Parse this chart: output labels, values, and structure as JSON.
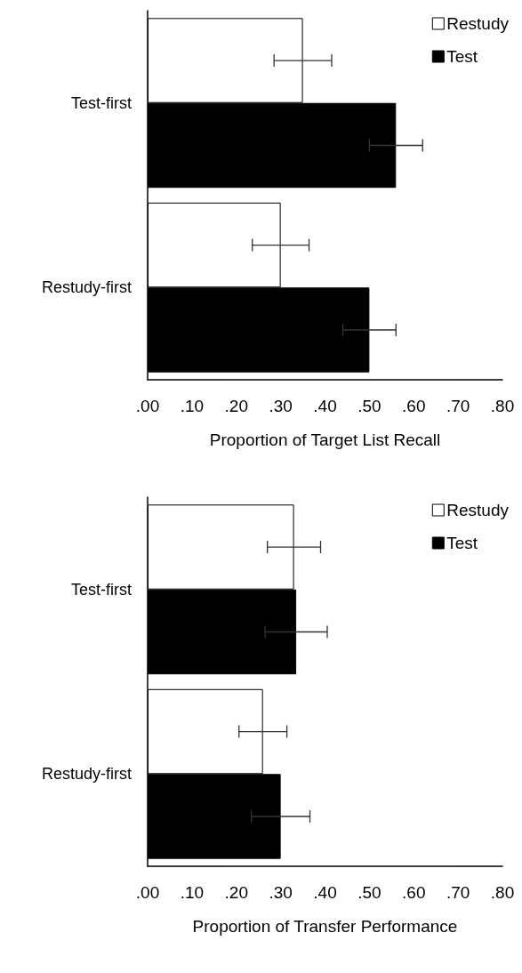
{
  "chart_data": [
    {
      "type": "bar",
      "orientation": "horizontal",
      "categories": [
        "Test-first",
        "Restudy-first"
      ],
      "xlabel": "Proportion of Target List Recall",
      "xlim": [
        0,
        0.8
      ],
      "xticks": [
        {
          "value": 0,
          "label": ".00"
        },
        {
          "value": 0.1,
          "label": ".10"
        },
        {
          "value": 0.2,
          "label": ".20"
        },
        {
          "value": 0.3,
          "label": ".30"
        },
        {
          "value": 0.4,
          "label": ".40"
        },
        {
          "value": 0.5,
          "label": ".50"
        },
        {
          "value": 0.6,
          "label": ".60"
        },
        {
          "value": 0.7,
          "label": ".70"
        },
        {
          "value": 0.8,
          "label": ".80"
        }
      ],
      "grid": false,
      "legend": "top right",
      "series": [
        {
          "name": "Restudy",
          "color": "#ffffff",
          "values": [
            0.35,
            0.3
          ],
          "errors": [
            0.065,
            0.064
          ]
        },
        {
          "name": "Test",
          "color": "#000000",
          "values": [
            0.56,
            0.5
          ],
          "errors": [
            0.06,
            0.06
          ]
        }
      ]
    },
    {
      "type": "bar",
      "orientation": "horizontal",
      "categories": [
        "Test-first",
        "Restudy-first"
      ],
      "xlabel": "Proportion of Transfer Performance",
      "xlim": [
        0,
        0.8
      ],
      "xticks": [
        {
          "value": 0,
          "label": ".00"
        },
        {
          "value": 0.1,
          "label": ".10"
        },
        {
          "value": 0.2,
          "label": ".20"
        },
        {
          "value": 0.3,
          "label": ".30"
        },
        {
          "value": 0.4,
          "label": ".40"
        },
        {
          "value": 0.5,
          "label": ".50"
        },
        {
          "value": 0.6,
          "label": ".60"
        },
        {
          "value": 0.7,
          "label": ".70"
        },
        {
          "value": 0.8,
          "label": ".80"
        }
      ],
      "grid": false,
      "legend": "top right",
      "series": [
        {
          "name": "Restudy",
          "color": "#ffffff",
          "values": [
            0.33,
            0.26
          ],
          "errors": [
            0.06,
            0.054
          ]
        },
        {
          "name": "Test",
          "color": "#000000",
          "values": [
            0.335,
            0.3
          ],
          "errors": [
            0.07,
            0.066
          ]
        }
      ]
    }
  ]
}
